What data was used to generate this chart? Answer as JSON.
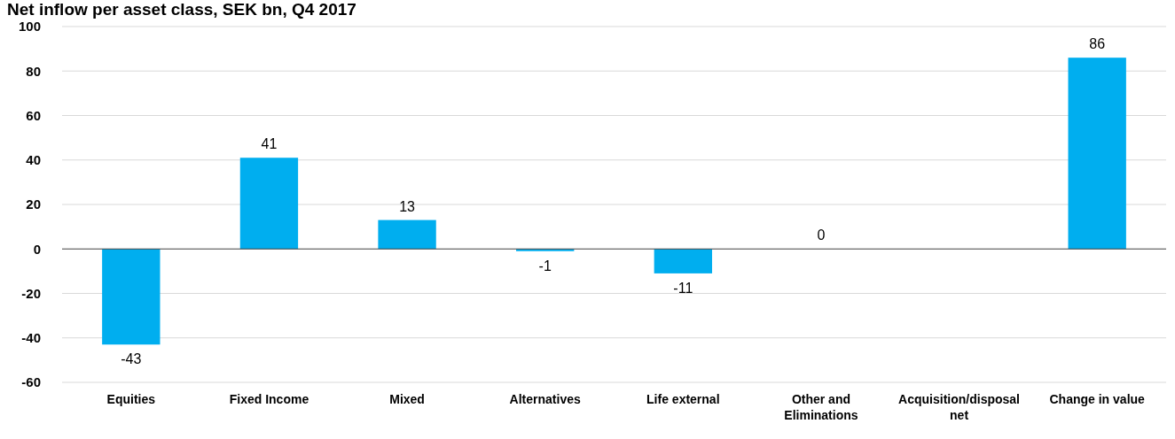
{
  "chart_data": {
    "type": "bar",
    "title": "Net inflow per asset class, SEK bn, Q4 2017",
    "categories": [
      "Equities",
      "Fixed Income",
      "Mixed",
      "Alternatives",
      "Life external",
      "Other and Eliminations",
      "Acquisition/disposal net",
      "Change in value"
    ],
    "values": [
      -43,
      41,
      13,
      -1,
      -11,
      0,
      null,
      86
    ],
    "value_labels": [
      "-43",
      "41",
      "13",
      "-1",
      "-11",
      "0",
      null,
      "86"
    ],
    "color": "#00aeef",
    "ylim": [
      -60,
      100
    ],
    "yticks": [
      -60,
      -40,
      -20,
      0,
      20,
      40,
      60,
      80,
      100
    ],
    "grid": "y"
  }
}
